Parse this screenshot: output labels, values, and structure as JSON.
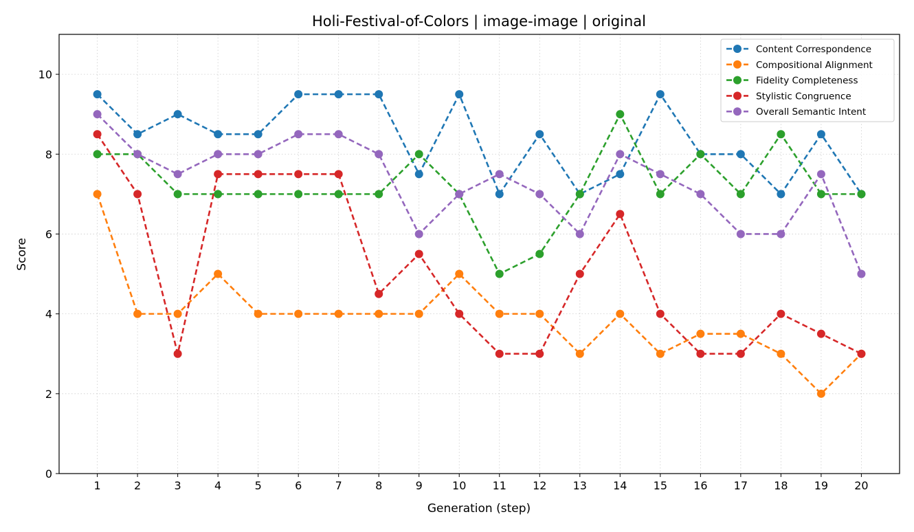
{
  "chart_data": {
    "type": "line",
    "title": "Holi-Festival-of-Colors | image-image | original",
    "xlabel": "Generation (step)",
    "ylabel": "Score",
    "x": [
      1,
      2,
      3,
      4,
      5,
      6,
      7,
      8,
      9,
      10,
      11,
      12,
      13,
      14,
      15,
      16,
      17,
      18,
      19,
      20
    ],
    "xlim": [
      0.05,
      20.95
    ],
    "ylim": [
      0,
      11
    ],
    "yticks": [
      0,
      2,
      4,
      6,
      8,
      10
    ],
    "grid": true,
    "legend_position": "top-right",
    "line_style": "dashed",
    "marker": "circle",
    "series": [
      {
        "name": "Content Correspondence",
        "color": "#1f77b4",
        "values": [
          9.5,
          8.5,
          9,
          8.5,
          8.5,
          9.5,
          9.5,
          9.5,
          7.5,
          9.5,
          7,
          8.5,
          7,
          7.5,
          9.5,
          8,
          8,
          7,
          8.5,
          7
        ]
      },
      {
        "name": "Compositional Alignment",
        "color": "#ff7f0e",
        "values": [
          7,
          4,
          4,
          5,
          4,
          4,
          4,
          4,
          4,
          5,
          4,
          4,
          3,
          4,
          3,
          3.5,
          3.5,
          3,
          2,
          3
        ]
      },
      {
        "name": "Fidelity Completeness",
        "color": "#2ca02c",
        "values": [
          8,
          8,
          7,
          7,
          7,
          7,
          7,
          7,
          8,
          7,
          5,
          5.5,
          7,
          9,
          7,
          8,
          7,
          8.5,
          7,
          7
        ]
      },
      {
        "name": "Stylistic Congruence",
        "color": "#d62728",
        "values": [
          8.5,
          7,
          3,
          7.5,
          7.5,
          7.5,
          7.5,
          4.5,
          5.5,
          4,
          3,
          3,
          5,
          6.5,
          4,
          3,
          3,
          4,
          3.5,
          3
        ]
      },
      {
        "name": "Overall Semantic Intent",
        "color": "#9467bd",
        "values": [
          9,
          8,
          7.5,
          8,
          8,
          8.5,
          8.5,
          8,
          6,
          7,
          7.5,
          7,
          6,
          8,
          7.5,
          7,
          6,
          6,
          7.5,
          5
        ]
      }
    ]
  }
}
